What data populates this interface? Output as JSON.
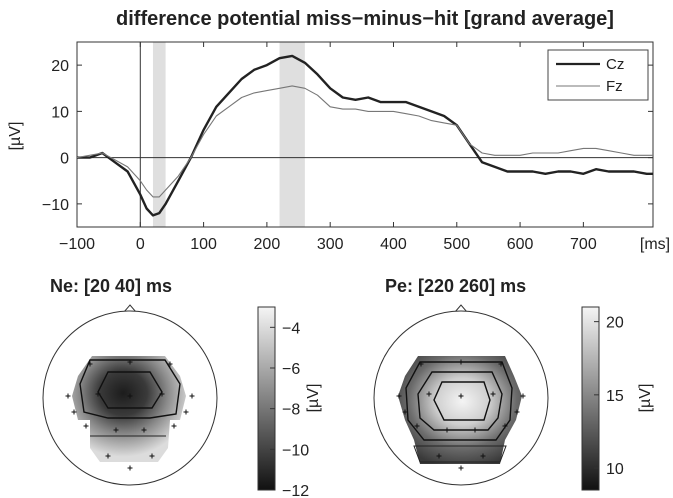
{
  "colors": {
    "cz_line": "#222222",
    "fz_line": "#777777",
    "window_shade": "#d9d9d9",
    "topo_dark": "#2a2a2a",
    "topo_light": "#f0f0f0"
  },
  "chart_data": [
    {
      "type": "line",
      "title": "difference potential miss−minus−hit [grand average]",
      "xlabel": "",
      "x_unit_label": "[ms]",
      "ylabel": "[µV]",
      "xlim": [
        -100,
        810
      ],
      "ylim": [
        -15,
        25
      ],
      "xticks": [
        -100,
        0,
        100,
        200,
        300,
        400,
        500,
        600,
        700
      ],
      "yticks": [
        -10,
        0,
        10,
        20
      ],
      "grid": false,
      "legend_position": "top-right",
      "shaded_windows": [
        [
          20,
          40
        ],
        [
          220,
          260
        ]
      ],
      "series": [
        {
          "name": "Cz",
          "x": [
            -100,
            -80,
            -60,
            -40,
            -20,
            0,
            10,
            20,
            30,
            40,
            60,
            80,
            100,
            120,
            140,
            160,
            180,
            200,
            220,
            240,
            260,
            280,
            300,
            320,
            340,
            360,
            380,
            400,
            420,
            440,
            460,
            480,
            500,
            520,
            540,
            560,
            580,
            600,
            620,
            640,
            660,
            680,
            700,
            720,
            740,
            760,
            780,
            800,
            810
          ],
          "y": [
            0,
            0,
            1,
            -1,
            -3,
            -8,
            -11,
            -12.5,
            -12,
            -10,
            -5,
            0,
            6,
            11,
            14,
            17,
            19,
            20,
            21.5,
            22,
            20.5,
            18,
            15,
            13,
            12.5,
            13,
            12,
            12,
            12,
            11,
            10,
            9,
            7,
            3,
            -1,
            -2,
            -3,
            -3,
            -3,
            -3.5,
            -3,
            -3,
            -3.5,
            -2.5,
            -3,
            -3,
            -3,
            -3.5,
            -3.5
          ]
        },
        {
          "name": "Fz",
          "x": [
            -100,
            -80,
            -60,
            -40,
            -20,
            0,
            10,
            20,
            30,
            40,
            60,
            80,
            100,
            120,
            140,
            160,
            180,
            200,
            220,
            240,
            260,
            280,
            300,
            320,
            340,
            360,
            380,
            400,
            420,
            440,
            460,
            480,
            500,
            520,
            540,
            560,
            580,
            600,
            620,
            640,
            660,
            680,
            700,
            720,
            740,
            760,
            780,
            800,
            810
          ],
          "y": [
            0,
            0.5,
            1,
            -0.5,
            -2,
            -5,
            -7,
            -8.5,
            -8.5,
            -7,
            -4,
            0,
            5,
            9,
            11,
            13,
            14,
            14.5,
            15,
            15.5,
            15,
            13.5,
            11,
            10.5,
            10.5,
            10,
            10,
            10,
            9.5,
            9,
            8,
            7.5,
            7,
            3,
            1,
            0.5,
            0.5,
            0.5,
            1,
            1,
            1,
            1.5,
            2,
            2,
            1.5,
            1,
            0.5,
            0.5,
            0.5
          ]
        }
      ]
    },
    {
      "type": "heatmap",
      "title": "Ne: [20 40] ms",
      "colorbar_label": "[µV]",
      "colorbar_range": [
        -12,
        -3
      ],
      "colorbar_ticks": [
        -4,
        -6,
        -8,
        -10,
        -12
      ]
    },
    {
      "type": "heatmap",
      "title": "Pe: [220 260] ms",
      "colorbar_label": "[µV]",
      "colorbar_range": [
        8.5,
        21
      ],
      "colorbar_ticks": [
        20,
        15,
        10
      ]
    }
  ]
}
